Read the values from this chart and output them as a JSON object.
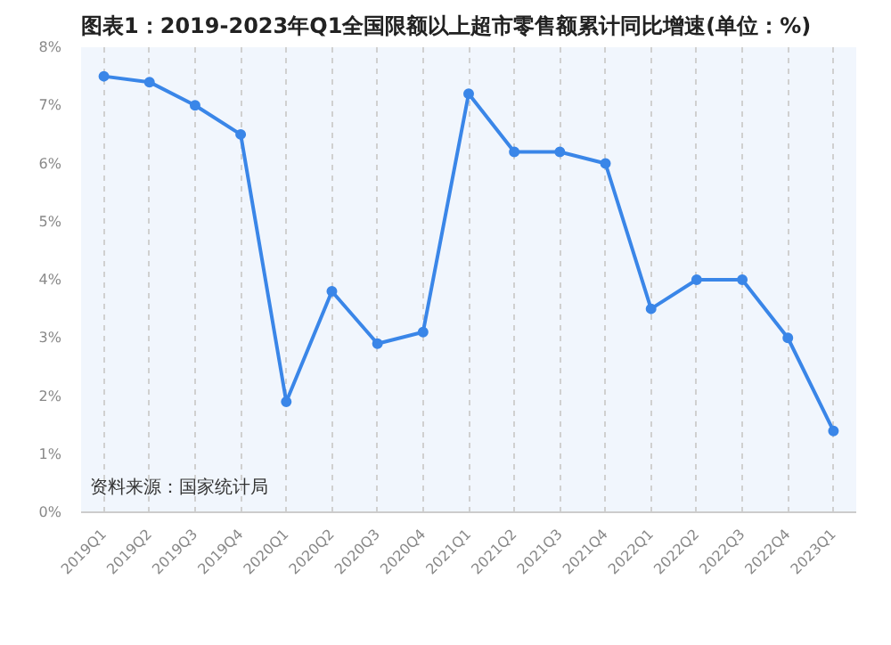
{
  "chart_data": {
    "type": "line",
    "title": "图表1：2019-2023年Q1全国限额以上超市零售额累计同比增速(单位：%)",
    "categories": [
      "2019Q1",
      "2019Q2",
      "2019Q3",
      "2019Q4",
      "2020Q1",
      "2020Q2",
      "2020Q3",
      "2020Q4",
      "2021Q1",
      "2021Q2",
      "2021Q3",
      "2021Q4",
      "2022Q1",
      "2022Q2",
      "2022Q3",
      "2022Q4",
      "2023Q1"
    ],
    "series": [
      {
        "color": "#3a86e8",
        "values": [
          7.5,
          7.4,
          7.0,
          6.5,
          1.9,
          3.8,
          2.9,
          3.1,
          7.2,
          6.2,
          6.2,
          6.0,
          3.5,
          4.0,
          4.0,
          3.0,
          1.4
        ]
      }
    ],
    "ylim": [
      0,
      8
    ],
    "yticks": [
      {
        "value": 0,
        "label": "0%"
      },
      {
        "value": 1,
        "label": "1%"
      },
      {
        "value": 2,
        "label": "2%"
      },
      {
        "value": 3,
        "label": "3%"
      },
      {
        "value": 4,
        "label": "4%"
      },
      {
        "value": 5,
        "label": "5%"
      },
      {
        "value": 6,
        "label": "6%"
      },
      {
        "value": 7,
        "label": "7%"
      },
      {
        "value": 8,
        "label": "8%"
      }
    ],
    "grid": "x",
    "marker": "circle",
    "line_style": "solid",
    "annotations": [
      "资料来源：国家统计局"
    ]
  }
}
